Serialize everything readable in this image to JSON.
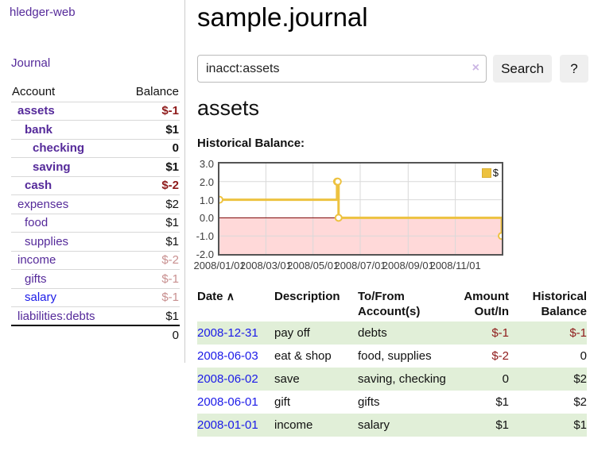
{
  "app": {
    "brand": "hledger-web"
  },
  "colors": {
    "purple_link": "#552a9a",
    "blue_link": "#1b1ae8",
    "negative_strong": "#8e1a1a",
    "negative_faded": "#c88f8f",
    "row_stripe_green": "#e1efd8",
    "series_yellow": "#edc240",
    "negative_region_pink": "#ffd9d9",
    "zero_line_red": "#7a0000"
  },
  "sidebar": {
    "journal_label": "Journal",
    "table": {
      "account_header": "Account",
      "balance_header": "Balance",
      "accounts": [
        {
          "name": "assets",
          "depth": 1,
          "strong": true,
          "balance": "$-1",
          "neg": "strong"
        },
        {
          "name": "bank",
          "depth": 2,
          "strong": true,
          "balance": "$1"
        },
        {
          "name": "checking",
          "depth": 3,
          "strong": true,
          "balance": "0"
        },
        {
          "name": "saving",
          "depth": 3,
          "strong": true,
          "balance": "$1"
        },
        {
          "name": "cash",
          "depth": 2,
          "strong": true,
          "balance": "$-2",
          "neg": "strong"
        },
        {
          "name": "expenses",
          "depth": 1,
          "strong": false,
          "balance": "$2"
        },
        {
          "name": "food",
          "depth": 2,
          "strong": false,
          "balance": "$1"
        },
        {
          "name": "supplies",
          "depth": 2,
          "strong": false,
          "balance": "$1"
        },
        {
          "name": "income",
          "depth": 1,
          "strong": false,
          "balance": "$-2",
          "neg": "faded"
        },
        {
          "name": "gifts",
          "depth": 2,
          "strong": false,
          "balance": "$-1",
          "neg": "faded"
        },
        {
          "name": "salary",
          "depth": 2,
          "strong": false,
          "balance": "$-1",
          "neg": "faded",
          "link_style": "unvisited"
        },
        {
          "name": "liabilities:debts",
          "depth": 1,
          "strong": false,
          "balance": "$1"
        }
      ],
      "total": "0"
    }
  },
  "header": {
    "title": "sample.journal"
  },
  "search": {
    "value": "inacct:assets",
    "clear_icon": "×",
    "button_label": "Search",
    "help_label": "?"
  },
  "account_page": {
    "heading": "assets",
    "chart_label": "Historical Balance:"
  },
  "chart_data": {
    "type": "line",
    "step": true,
    "title": "Historical Balance",
    "series": [
      {
        "name": "$",
        "color": "#edc240",
        "points": [
          [
            "2008-01-01",
            1
          ],
          [
            "2008-06-01",
            2
          ],
          [
            "2008-06-02",
            2
          ],
          [
            "2008-06-03",
            0
          ],
          [
            "2008-12-31",
            -1
          ]
        ]
      }
    ],
    "xlim": [
      "2008-01-01",
      "2008-12-31"
    ],
    "ylim": [
      -2,
      3
    ],
    "y_ticks": [
      3.0,
      2.0,
      1.0,
      0.0,
      -1.0,
      -2.0
    ],
    "x_ticks": [
      {
        "date": "2008-01-01",
        "label": "2008/01/01"
      },
      {
        "date": "2008-03-01",
        "label": "2008/03/01"
      },
      {
        "date": "2008-05-01",
        "label": "2008/05/01"
      },
      {
        "date": "2008-07-01",
        "label": "2008/07/01"
      },
      {
        "date": "2008-09-01",
        "label": "2008/09/01"
      },
      {
        "date": "2008-11-01",
        "label": "2008/11/01"
      }
    ],
    "grid": true,
    "legend": {
      "label": "$",
      "position": "top-right"
    },
    "negative_region_shaded": true
  },
  "register": {
    "headers": {
      "date": "Date",
      "sort_icon": "∧",
      "description": "Description",
      "account": "To/From Account(s)",
      "amount": "Amount Out/In",
      "balance": "Historical Balance"
    },
    "rows": [
      {
        "date": "2008-12-31",
        "description": "pay off",
        "accounts": "debts",
        "amount": "$-1",
        "amount_neg": true,
        "balance": "$-1",
        "balance_neg": true
      },
      {
        "date": "2008-06-03",
        "description": "eat & shop",
        "accounts": "food, supplies",
        "amount": "$-2",
        "amount_neg": true,
        "balance": "0",
        "balance_neg": false
      },
      {
        "date": "2008-06-02",
        "description": "save",
        "accounts": "saving, checking",
        "amount": "0",
        "amount_neg": false,
        "balance": "$2",
        "balance_neg": false
      },
      {
        "date": "2008-06-01",
        "description": "gift",
        "accounts": "gifts",
        "amount": "$1",
        "amount_neg": false,
        "balance": "$2",
        "balance_neg": false
      },
      {
        "date": "2008-01-01",
        "description": "income",
        "accounts": "salary",
        "amount": "$1",
        "amount_neg": false,
        "balance": "$1",
        "balance_neg": false
      }
    ]
  }
}
